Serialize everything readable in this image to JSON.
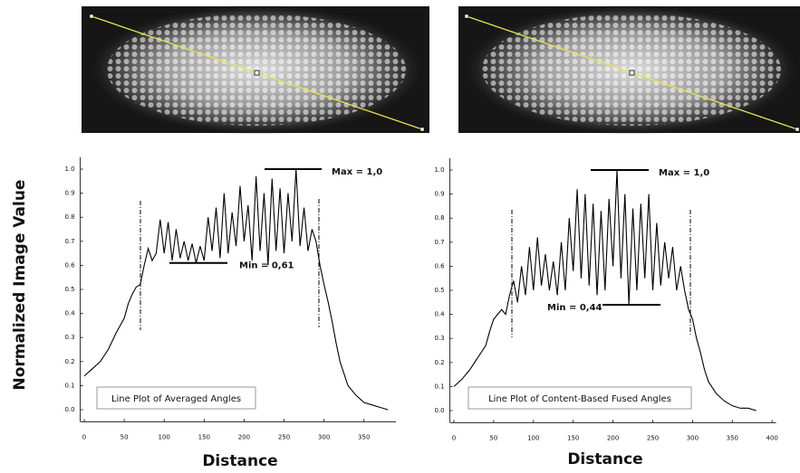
{
  "chart_data": [
    {
      "type": "line",
      "xlabel": "Distance",
      "ylabel": "Normalized Image Value",
      "xlim": [
        -5,
        390
      ],
      "xticks": [
        0,
        50,
        100,
        150,
        200,
        250,
        300,
        350
      ],
      "ylim": [
        -0.05,
        1.05
      ],
      "yticks": [
        {
          "value": 0,
          "label": "0.0"
        },
        0.1,
        0.2,
        0.3,
        0.4,
        0.5,
        0.6,
        0.7,
        0.8,
        0.9,
        {
          "value": 1,
          "label": "1.0"
        }
      ],
      "x": [
        0,
        10,
        20,
        30,
        40,
        45,
        50,
        55,
        60,
        65,
        70,
        75,
        80,
        85,
        90,
        95,
        100,
        105,
        110,
        115,
        120,
        125,
        130,
        135,
        140,
        145,
        150,
        155,
        160,
        165,
        170,
        175,
        180,
        185,
        190,
        195,
        200,
        205,
        210,
        215,
        220,
        225,
        230,
        235,
        240,
        245,
        250,
        255,
        260,
        265,
        270,
        275,
        280,
        285,
        290,
        295,
        300,
        305,
        310,
        315,
        320,
        330,
        340,
        350,
        360,
        370,
        380
      ],
      "series": [
        {
          "name": "Line Plot of Averaged Angles",
          "color": "#000000",
          "values": [
            0.14,
            0.17,
            0.2,
            0.25,
            0.32,
            0.35,
            0.38,
            0.44,
            0.48,
            0.51,
            0.52,
            0.6,
            0.67,
            0.62,
            0.65,
            0.79,
            0.65,
            0.78,
            0.62,
            0.75,
            0.63,
            0.7,
            0.62,
            0.69,
            0.61,
            0.68,
            0.62,
            0.8,
            0.66,
            0.84,
            0.63,
            0.9,
            0.65,
            0.82,
            0.68,
            0.93,
            0.7,
            0.85,
            0.62,
            0.97,
            0.66,
            0.9,
            0.6,
            0.96,
            0.66,
            0.92,
            0.65,
            0.9,
            0.7,
            1.0,
            0.68,
            0.84,
            0.66,
            0.75,
            0.7,
            0.6,
            0.52,
            0.45,
            0.37,
            0.28,
            0.2,
            0.1,
            0.06,
            0.03,
            0.02,
            0.01,
            0.0
          ]
        }
      ],
      "annotations": [
        {
          "text": "Max = 1,0",
          "value": 1.0
        },
        {
          "text": "Min = 0,61",
          "value": 0.61
        }
      ]
    },
    {
      "type": "line",
      "xlabel": "Distance",
      "xlim": [
        -5,
        405
      ],
      "xticks": [
        0,
        50,
        100,
        150,
        200,
        250,
        300,
        350,
        400
      ],
      "ylim": [
        -0.05,
        1.05
      ],
      "yticks": [
        {
          "value": 0,
          "label": "0.0"
        },
        0.1,
        0.2,
        0.3,
        0.4,
        0.5,
        0.6,
        0.7,
        0.8,
        0.9,
        {
          "value": 1,
          "label": "1.0"
        }
      ],
      "x": [
        0,
        10,
        20,
        30,
        40,
        45,
        50,
        55,
        60,
        65,
        70,
        75,
        80,
        85,
        90,
        95,
        100,
        105,
        110,
        115,
        120,
        125,
        130,
        135,
        140,
        145,
        150,
        155,
        160,
        165,
        170,
        175,
        180,
        185,
        190,
        195,
        200,
        205,
        210,
        215,
        220,
        225,
        230,
        235,
        240,
        245,
        250,
        255,
        260,
        265,
        270,
        275,
        280,
        285,
        290,
        295,
        300,
        305,
        310,
        315,
        320,
        330,
        340,
        350,
        360,
        370,
        380
      ],
      "series": [
        {
          "name": "Line Plot of Content-Based Fused Angles",
          "color": "#000000",
          "values": [
            0.1,
            0.13,
            0.17,
            0.22,
            0.27,
            0.33,
            0.38,
            0.4,
            0.42,
            0.4,
            0.48,
            0.54,
            0.45,
            0.6,
            0.48,
            0.68,
            0.5,
            0.72,
            0.52,
            0.65,
            0.5,
            0.62,
            0.48,
            0.7,
            0.5,
            0.8,
            0.58,
            0.92,
            0.55,
            0.9,
            0.52,
            0.86,
            0.48,
            0.83,
            0.5,
            0.88,
            0.6,
            1.0,
            0.55,
            0.9,
            0.44,
            0.84,
            0.5,
            0.86,
            0.55,
            0.9,
            0.5,
            0.78,
            0.52,
            0.7,
            0.55,
            0.68,
            0.5,
            0.6,
            0.5,
            0.42,
            0.38,
            0.3,
            0.24,
            0.17,
            0.12,
            0.07,
            0.04,
            0.02,
            0.01,
            0.01,
            0.0
          ]
        }
      ],
      "annotations": [
        {
          "text": "Max = 1,0",
          "value": 1.0
        },
        {
          "text": "Min = 0,44",
          "value": 0.44
        }
      ]
    }
  ]
}
